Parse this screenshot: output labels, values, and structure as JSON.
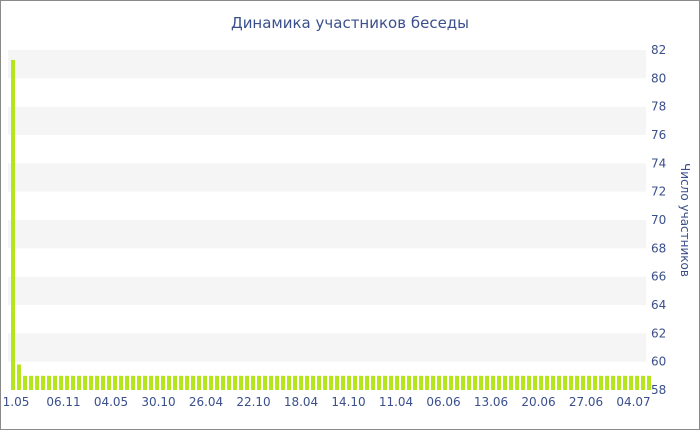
{
  "chart_data": {
    "type": "bar",
    "title": "Динамика участников беседы",
    "xlabel": "",
    "ylabel": "Число участников",
    "ylim": [
      58,
      82
    ],
    "y_ticks": [
      58,
      60,
      62,
      64,
      66,
      68,
      70,
      72,
      74,
      76,
      78,
      80,
      82
    ],
    "x_tick_labels": [
      "1.05",
      "06.11",
      "04.05",
      "30.10",
      "26.04",
      "22.10",
      "18.04",
      "14.10",
      "11.04",
      "06.06",
      "13.06",
      "20.06",
      "27.06",
      "04.07"
    ],
    "y_axis_position": "right",
    "grid": "horizontal bands",
    "colors": {
      "bar": "#b5e61d",
      "band": "#f5f5f5",
      "text": "#3a4f8c"
    },
    "values": [
      81.3,
      59.8,
      59,
      59,
      59,
      59,
      59,
      59,
      59,
      59,
      59,
      59,
      59,
      59,
      59,
      59,
      59,
      59,
      59,
      59,
      59,
      59,
      59,
      59,
      59,
      59,
      59,
      59,
      59,
      59,
      59,
      59,
      59,
      59,
      59,
      59,
      59,
      59,
      59,
      59,
      59,
      59,
      59,
      59,
      59,
      59,
      59,
      59,
      59,
      59,
      59,
      59,
      59,
      59,
      59,
      59,
      59,
      59,
      59,
      59,
      59,
      59,
      59,
      59,
      59,
      59,
      59,
      59,
      59,
      59,
      59,
      59,
      59,
      59,
      59,
      59,
      59,
      59,
      59,
      59,
      59,
      59,
      59,
      59,
      59,
      59,
      59,
      59,
      59,
      59,
      59,
      59,
      59,
      59,
      59,
      59,
      59,
      59,
      59,
      59,
      59,
      59,
      59,
      59,
      59,
      59,
      59
    ]
  }
}
